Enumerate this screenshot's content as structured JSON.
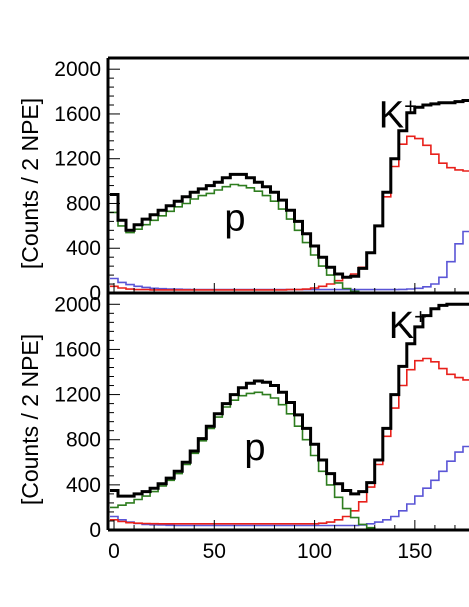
{
  "chart_data": [
    {
      "type": "line",
      "panel": "top",
      "ylabel": "[Counts / 2 NPE]",
      "xlabel": "",
      "xlim": [
        -3,
        177
      ],
      "ylim": [
        0,
        2100
      ],
      "yticks": [
        0,
        400,
        800,
        1200,
        1600,
        2000
      ],
      "ytick_labels": [
        "0",
        "400",
        "800",
        "1200",
        "1600",
        "2000"
      ],
      "grid": false,
      "annotations": [
        {
          "text": "p",
          "x": 55,
          "y": 560
        },
        {
          "text": "K",
          "sup": "+",
          "x": 132,
          "y": 1480
        }
      ],
      "series": [
        {
          "color": "#000000",
          "x": [
            0,
            4,
            8,
            12,
            16,
            20,
            24,
            28,
            32,
            36,
            40,
            44,
            48,
            52,
            56,
            60,
            64,
            68,
            72,
            76,
            80,
            84,
            88,
            92,
            96,
            100,
            104,
            108,
            112,
            116,
            120,
            124,
            128,
            132,
            136,
            140,
            144,
            148,
            152,
            156,
            160,
            164,
            168,
            172,
            176
          ],
          "values": [
            880,
            650,
            560,
            610,
            660,
            700,
            740,
            780,
            820,
            860,
            900,
            930,
            960,
            990,
            1030,
            1060,
            1060,
            1030,
            990,
            950,
            900,
            830,
            740,
            640,
            530,
            420,
            320,
            230,
            170,
            140,
            150,
            220,
            360,
            600,
            900,
            1200,
            1450,
            1610,
            1660,
            1680,
            1690,
            1700,
            1700,
            1710,
            1720
          ]
        },
        {
          "color": "#2e7d1f",
          "x": [
            0,
            4,
            8,
            12,
            16,
            20,
            24,
            28,
            32,
            36,
            40,
            44,
            48,
            52,
            56,
            60,
            64,
            68,
            72,
            76,
            80,
            84,
            88,
            92,
            96,
            100,
            104,
            108,
            112,
            116,
            120,
            124,
            128,
            132,
            136,
            140,
            144,
            148,
            152,
            156,
            160,
            164,
            168,
            172,
            176
          ],
          "values": [
            720,
            600,
            540,
            570,
            610,
            650,
            690,
            730,
            770,
            800,
            840,
            870,
            890,
            920,
            950,
            970,
            960,
            940,
            910,
            870,
            820,
            750,
            660,
            560,
            450,
            340,
            240,
            160,
            90,
            40,
            15,
            5,
            0,
            0,
            0,
            0,
            0,
            0,
            0,
            0,
            0,
            0,
            0,
            0,
            0
          ]
        },
        {
          "color": "#e8201b",
          "x": [
            0,
            4,
            8,
            12,
            16,
            20,
            24,
            28,
            32,
            36,
            40,
            44,
            48,
            52,
            56,
            60,
            64,
            68,
            72,
            76,
            80,
            84,
            88,
            92,
            96,
            100,
            104,
            108,
            112,
            116,
            120,
            124,
            128,
            132,
            136,
            140,
            144,
            148,
            152,
            156,
            160,
            164,
            168,
            172,
            176
          ],
          "values": [
            60,
            45,
            35,
            30,
            30,
            28,
            28,
            28,
            28,
            28,
            28,
            28,
            28,
            28,
            28,
            28,
            28,
            28,
            28,
            28,
            28,
            28,
            30,
            30,
            35,
            45,
            60,
            80,
            110,
            140,
            170,
            230,
            360,
            600,
            860,
            1130,
            1330,
            1400,
            1380,
            1320,
            1240,
            1160,
            1120,
            1100,
            1090
          ]
        },
        {
          "color": "#5a55d6",
          "x": [
            0,
            4,
            8,
            12,
            16,
            20,
            24,
            28,
            32,
            36,
            40,
            44,
            48,
            52,
            56,
            60,
            64,
            68,
            72,
            76,
            80,
            84,
            88,
            92,
            96,
            100,
            104,
            108,
            112,
            116,
            120,
            124,
            128,
            132,
            136,
            140,
            144,
            148,
            152,
            156,
            160,
            164,
            168,
            172,
            176
          ],
          "values": [
            130,
            95,
            75,
            60,
            50,
            42,
            38,
            36,
            34,
            32,
            30,
            30,
            30,
            30,
            30,
            30,
            30,
            30,
            30,
            30,
            30,
            30,
            30,
            30,
            30,
            30,
            30,
            30,
            30,
            30,
            30,
            30,
            30,
            30,
            30,
            30,
            32,
            36,
            42,
            55,
            80,
            140,
            280,
            440,
            550
          ]
        }
      ]
    },
    {
      "type": "line",
      "panel": "bottom",
      "ylabel": "[Counts / 2 NPE]",
      "xlabel": "",
      "xlim": [
        -3,
        177
      ],
      "ylim": [
        0,
        2100
      ],
      "xticks": [
        0,
        50,
        100,
        150
      ],
      "xtick_labels": [
        "0",
        "50",
        "100",
        "150"
      ],
      "yticks": [
        0,
        400,
        800,
        1200,
        1600,
        2000
      ],
      "ytick_labels": [
        "0",
        "400",
        "800",
        "1200",
        "1600",
        "2000"
      ],
      "grid": false,
      "annotations": [
        {
          "text": "p",
          "x": 65,
          "y": 620
        },
        {
          "text": "K",
          "sup": "+",
          "x": 137,
          "y": 1700
        }
      ],
      "series": [
        {
          "color": "#000000",
          "x": [
            0,
            4,
            8,
            12,
            16,
            20,
            24,
            28,
            32,
            36,
            40,
            44,
            48,
            52,
            56,
            60,
            64,
            68,
            72,
            76,
            80,
            84,
            88,
            92,
            96,
            100,
            104,
            108,
            112,
            116,
            120,
            124,
            128,
            132,
            136,
            140,
            144,
            148,
            152,
            156,
            160,
            164,
            168,
            172,
            176
          ],
          "values": [
            350,
            300,
            300,
            320,
            340,
            370,
            410,
            460,
            520,
            600,
            700,
            810,
            920,
            1030,
            1120,
            1200,
            1260,
            1300,
            1320,
            1310,
            1280,
            1220,
            1130,
            1020,
            900,
            760,
            620,
            500,
            410,
            350,
            320,
            340,
            420,
            620,
            900,
            1200,
            1450,
            1650,
            1800,
            1900,
            1960,
            1990,
            2000,
            2000,
            2000
          ]
        },
        {
          "color": "#2e7d1f",
          "x": [
            0,
            4,
            8,
            12,
            16,
            20,
            24,
            28,
            32,
            36,
            40,
            44,
            48,
            52,
            56,
            60,
            64,
            68,
            72,
            76,
            80,
            84,
            88,
            92,
            96,
            100,
            104,
            108,
            112,
            116,
            120,
            124,
            128,
            132,
            136,
            140,
            144,
            148,
            152,
            156,
            160,
            164,
            168,
            172,
            176
          ],
          "values": [
            200,
            220,
            240,
            270,
            300,
            340,
            390,
            440,
            500,
            580,
            680,
            790,
            900,
            1000,
            1090,
            1150,
            1190,
            1210,
            1220,
            1200,
            1170,
            1110,
            1030,
            920,
            800,
            660,
            520,
            400,
            290,
            190,
            110,
            50,
            20,
            5,
            0,
            0,
            0,
            0,
            0,
            0,
            0,
            0,
            0,
            0,
            0
          ]
        },
        {
          "color": "#e8201b",
          "x": [
            0,
            4,
            8,
            12,
            16,
            20,
            24,
            28,
            32,
            36,
            40,
            44,
            48,
            52,
            56,
            60,
            64,
            68,
            72,
            76,
            80,
            84,
            88,
            92,
            96,
            100,
            104,
            108,
            112,
            116,
            120,
            124,
            128,
            132,
            136,
            140,
            144,
            148,
            152,
            156,
            160,
            164,
            168,
            172,
            176
          ],
          "values": [
            90,
            75,
            65,
            60,
            58,
            56,
            55,
            55,
            55,
            55,
            55,
            55,
            55,
            55,
            55,
            55,
            55,
            55,
            55,
            55,
            55,
            55,
            55,
            55,
            55,
            55,
            60,
            70,
            90,
            120,
            170,
            250,
            380,
            580,
            830,
            1080,
            1280,
            1420,
            1500,
            1520,
            1490,
            1430,
            1380,
            1350,
            1330
          ]
        },
        {
          "color": "#5a55d6",
          "x": [
            0,
            4,
            8,
            12,
            16,
            20,
            24,
            28,
            32,
            36,
            40,
            44,
            48,
            52,
            56,
            60,
            64,
            68,
            72,
            76,
            80,
            84,
            88,
            92,
            96,
            100,
            104,
            108,
            112,
            116,
            120,
            124,
            128,
            132,
            136,
            140,
            144,
            148,
            152,
            156,
            160,
            164,
            168,
            172,
            176
          ],
          "values": [
            120,
            90,
            70,
            58,
            50,
            46,
            44,
            42,
            40,
            40,
            40,
            40,
            40,
            40,
            40,
            40,
            40,
            40,
            40,
            40,
            40,
            40,
            40,
            40,
            40,
            40,
            40,
            40,
            40,
            40,
            40,
            45,
            55,
            70,
            90,
            120,
            170,
            230,
            300,
            370,
            440,
            520,
            610,
            690,
            740
          ]
        }
      ]
    }
  ]
}
